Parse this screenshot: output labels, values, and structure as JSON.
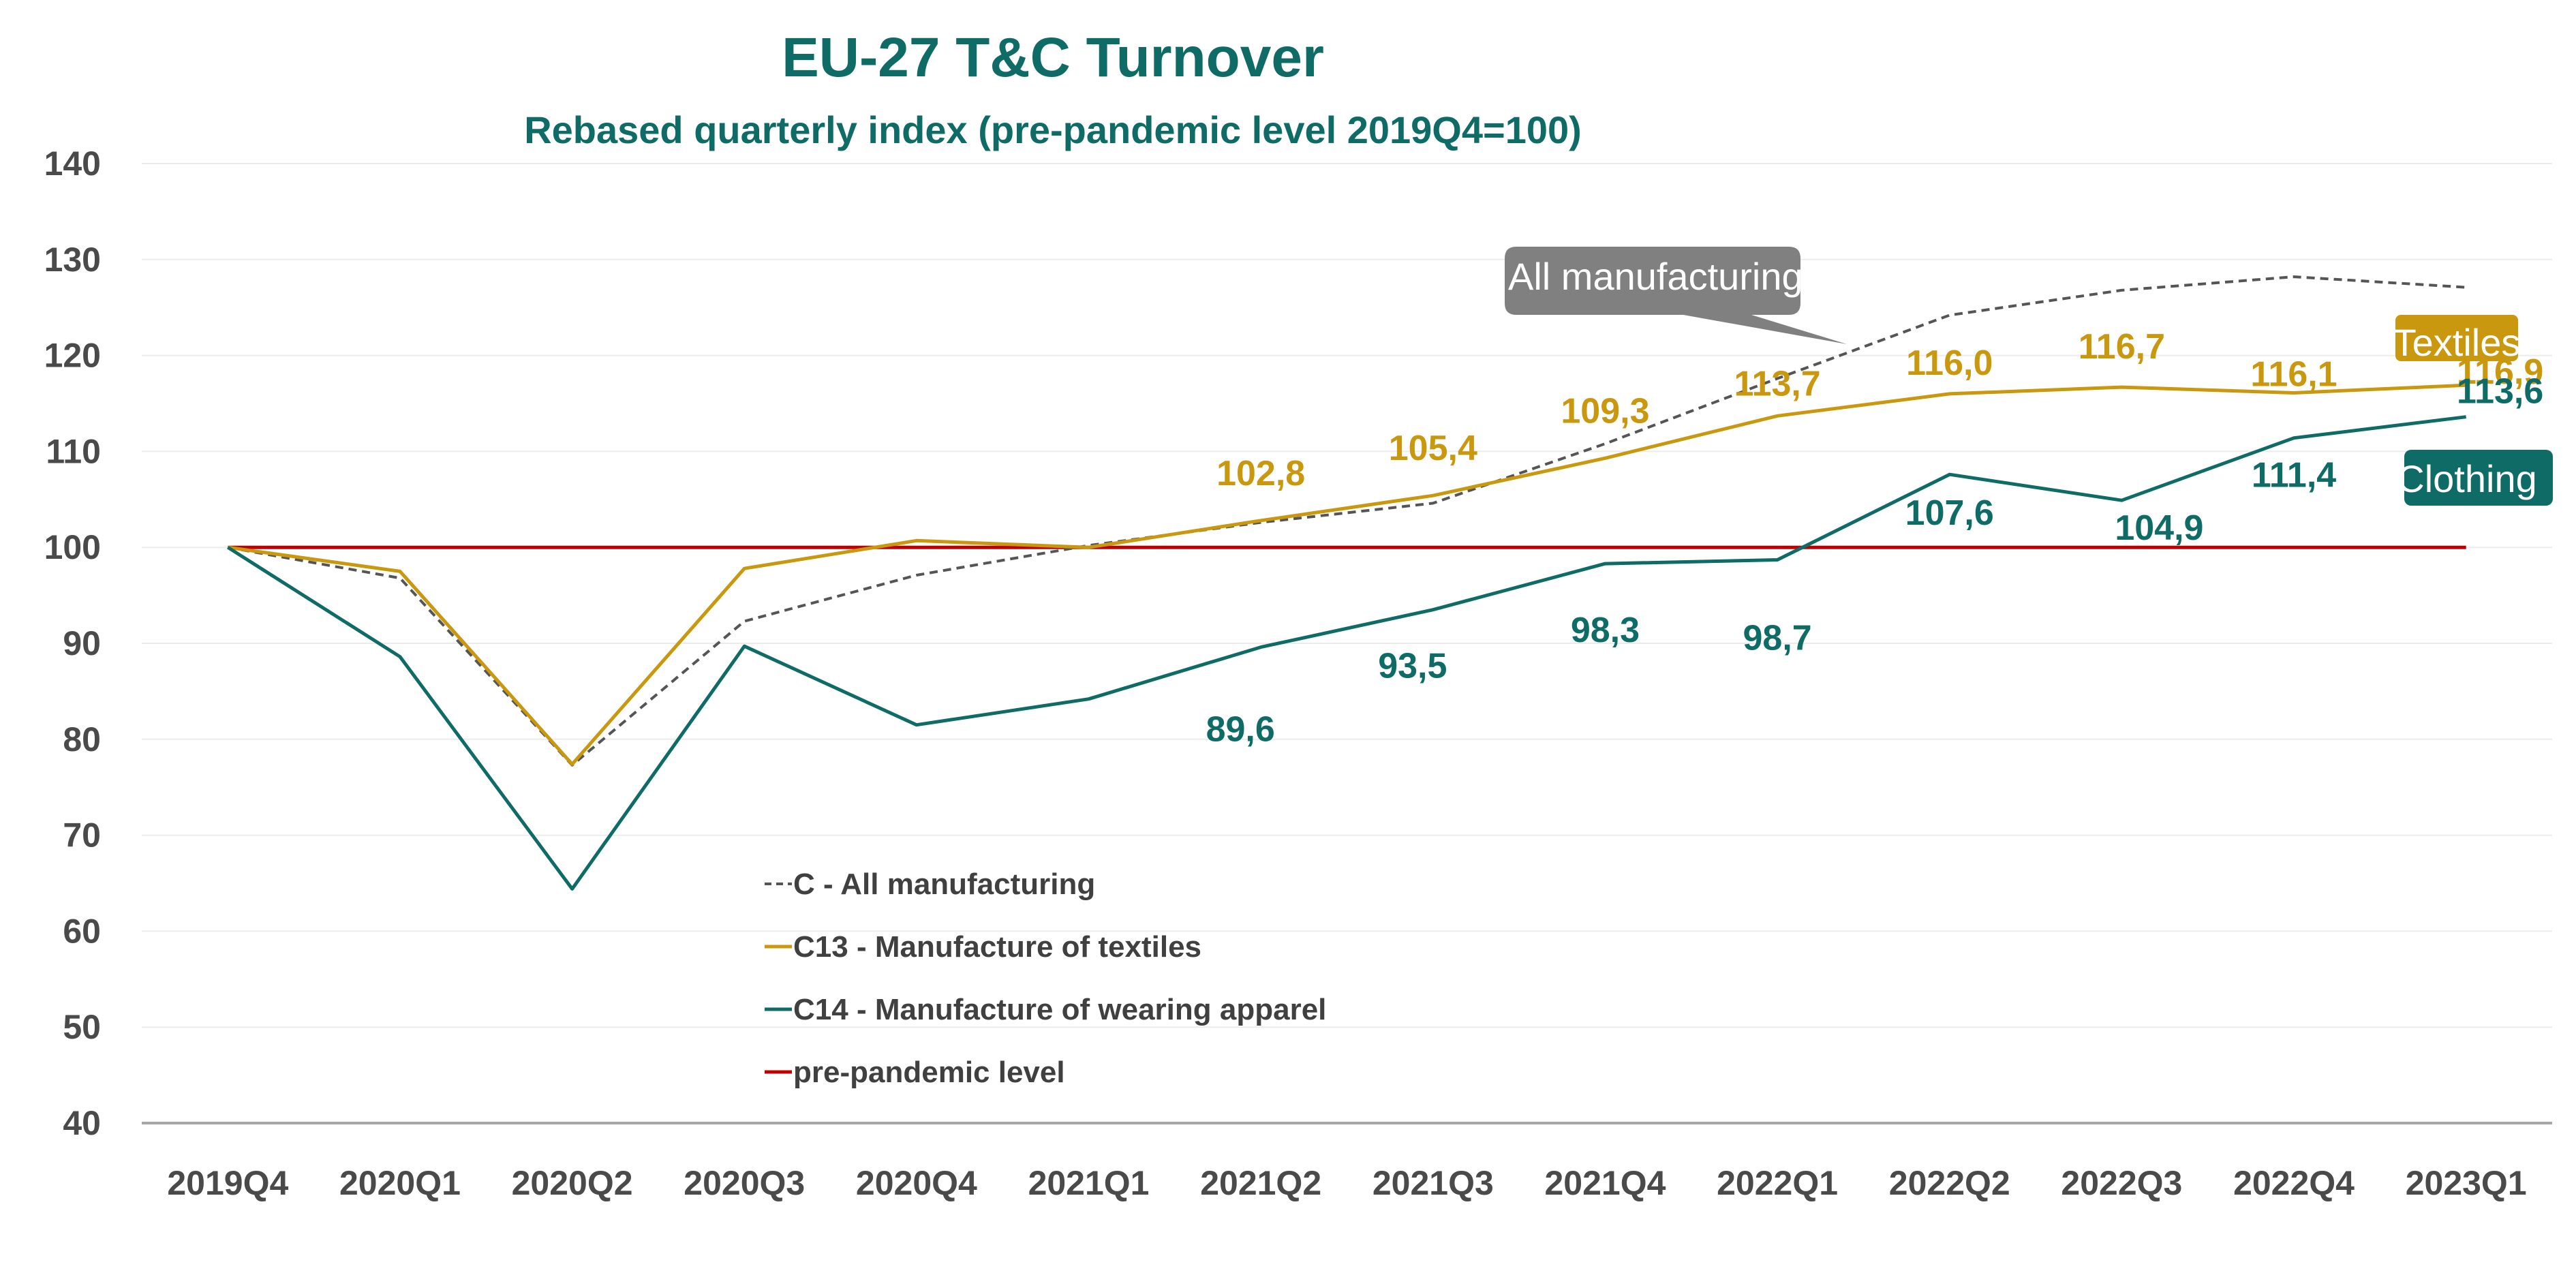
{
  "chart_data": {
    "type": "line",
    "title": "EU-27 T&C Turnover",
    "subtitle": "Rebased quarterly index (pre-pandemic level 2019Q4=100)",
    "categories": [
      "2019Q4",
      "2020Q1",
      "2020Q2",
      "2020Q3",
      "2020Q4",
      "2021Q1",
      "2021Q2",
      "2021Q3",
      "2021Q4",
      "2022Q1",
      "2022Q2",
      "2022Q3",
      "2022Q4",
      "2023Q1"
    ],
    "ylim": [
      40,
      140
    ],
    "yticks": [
      "40",
      "50",
      "60",
      "70",
      "80",
      "90",
      "100",
      "110",
      "120",
      "130",
      "140"
    ],
    "grid": true,
    "legend_position": "center-left",
    "series": [
      {
        "key": "all",
        "name": "C - All manufacturing",
        "color": "#555555",
        "dashed": true,
        "values": [
          100,
          96.8,
          77.3,
          92.3,
          97.1,
          100.2,
          102.6,
          104.6,
          110.8,
          117.6,
          124.2,
          126.8,
          128.2,
          127.1
        ]
      },
      {
        "key": "tex",
        "name": "C13 - Manufacture of textiles",
        "color": "#c9980e",
        "dashed": false,
        "values": [
          100,
          97.5,
          77.4,
          97.8,
          100.7,
          100.0,
          102.8,
          105.4,
          109.3,
          113.7,
          116.0,
          116.7,
          116.1,
          116.9
        ]
      },
      {
        "key": "app",
        "name": "C14 - Manufacture of wearing apparel",
        "color": "#0f6b66",
        "dashed": false,
        "values": [
          100,
          88.6,
          64.4,
          89.7,
          81.5,
          84.2,
          89.6,
          93.5,
          98.3,
          98.7,
          107.6,
          104.9,
          111.4,
          113.6
        ]
      },
      {
        "key": "pre",
        "name": "pre-pandemic level",
        "color": "#c00000",
        "dashed": false,
        "values": [
          100,
          100,
          100,
          100,
          100,
          100,
          100,
          100,
          100,
          100,
          100,
          100,
          100,
          100
        ]
      }
    ],
    "data_labels": {
      "tex": [
        {
          "i": 6,
          "text": "102,8"
        },
        {
          "i": 7,
          "text": "105,4"
        },
        {
          "i": 8,
          "text": "109,3"
        },
        {
          "i": 9,
          "text": "113,7"
        },
        {
          "i": 10,
          "text": "116,0"
        },
        {
          "i": 11,
          "text": "116,7"
        },
        {
          "i": 12,
          "text": "116,1"
        },
        {
          "i": 13,
          "text": "116,9"
        }
      ],
      "app": [
        {
          "i": 6,
          "text": "89,6"
        },
        {
          "i": 7,
          "text": "93,5"
        },
        {
          "i": 8,
          "text": "98,3"
        },
        {
          "i": 9,
          "text": "98,7"
        },
        {
          "i": 10,
          "text": "107,6"
        },
        {
          "i": 11,
          "text": "104,9"
        },
        {
          "i": 12,
          "text": "111,4"
        },
        {
          "i": 13,
          "text": "113,6"
        }
      ]
    },
    "annotations": [
      {
        "text": "All manufacturing",
        "color": "#808080"
      },
      {
        "text": "Textiles",
        "color": "#c9980e"
      },
      {
        "text": "Clothing",
        "color": "#0f6b66"
      }
    ]
  }
}
